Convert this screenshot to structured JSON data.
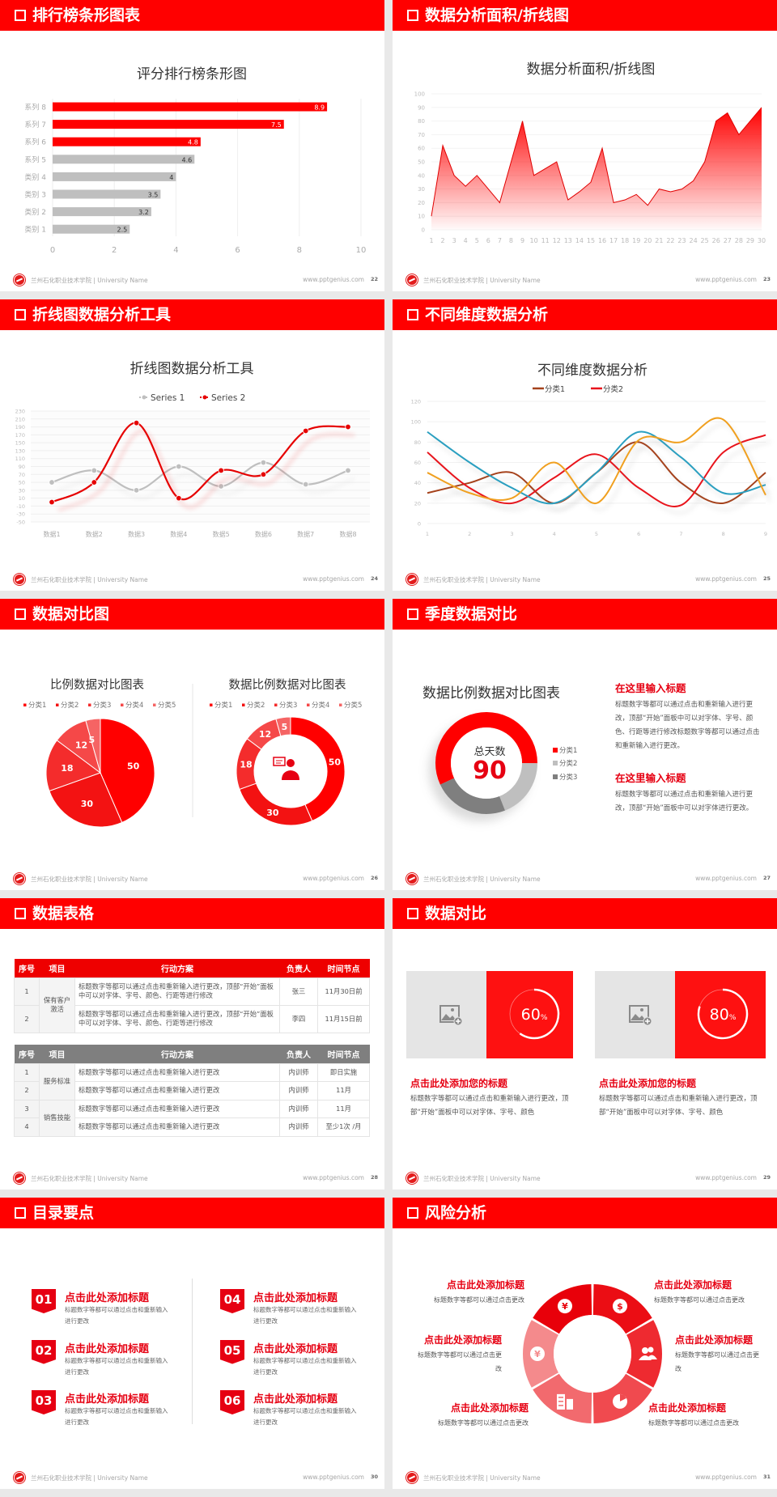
{
  "footer": {
    "school": "兰州石化职业技术学院 | University Name",
    "url": "www.pptgenius.com"
  },
  "theme": {
    "accent": "#ff0000",
    "bar_gray": "#bfbfbf",
    "text_red": "#e60012"
  },
  "slides": [
    {
      "title": "排行榜条形图表",
      "page": "22",
      "chart_data": {
        "type": "bar",
        "orientation": "horizontal",
        "title": "评分排行榜条形图",
        "categories": [
          "系列 8",
          "系列 7",
          "系列 6",
          "系列 5",
          "类别 4",
          "类别 3",
          "类别 2",
          "类别 1"
        ],
        "values": [
          8.9,
          7.5,
          4.8,
          4.6,
          4,
          3.5,
          3.2,
          2.5
        ],
        "bar_colors": [
          "#ff0000",
          "#ff0000",
          "#ff0000",
          "#bfbfbf",
          "#bfbfbf",
          "#bfbfbf",
          "#bfbfbf",
          "#bfbfbf"
        ],
        "xlim": [
          0,
          10
        ],
        "xticks": [
          "0",
          "2",
          "4",
          "6",
          "8",
          "10"
        ],
        "grid": true
      }
    },
    {
      "title": "数据分析面积/折线图",
      "page": "23",
      "chart_data": {
        "type": "area",
        "title": "数据分析面积/折线图",
        "x": [
          1,
          2,
          3,
          4,
          5,
          6,
          7,
          8,
          9,
          10,
          11,
          12,
          13,
          14,
          15,
          16,
          17,
          18,
          19,
          20,
          21,
          22,
          23,
          24,
          25,
          26,
          27,
          28,
          29,
          30
        ],
        "values": [
          10,
          62,
          40,
          32,
          40,
          30,
          20,
          50,
          80,
          40,
          45,
          50,
          22,
          28,
          35,
          60,
          20,
          22,
          26,
          18,
          30,
          28,
          30,
          36,
          50,
          80,
          86,
          70,
          80,
          90
        ],
        "ylim": [
          0,
          100
        ],
        "yticks": [
          "0",
          "10",
          "20",
          "30",
          "40",
          "50",
          "60",
          "70",
          "80",
          "90",
          "100"
        ],
        "color": "#e00000",
        "grid": true
      }
    },
    {
      "title": "折线图数据分析工具",
      "page": "24",
      "chart_data": {
        "type": "line",
        "smooth": true,
        "title": "折线图数据分析工具",
        "categories": [
          "数据1",
          "数据2",
          "数据3",
          "数据4",
          "数据5",
          "数据6",
          "数据7",
          "数据8"
        ],
        "series": [
          {
            "name": "Series 1",
            "values": [
              50,
              80,
              30,
              90,
              40,
              100,
              45,
              80
            ],
            "color": "#bfbfbf"
          },
          {
            "name": "Series 2",
            "values": [
              0,
              50,
              200,
              10,
              80,
              70,
              180,
              190
            ],
            "color": "#e60000"
          }
        ],
        "ylim": [
          -50,
          230
        ],
        "yticks": [
          "230",
          "210",
          "190",
          "170",
          "150",
          "130",
          "110",
          "90",
          "70",
          "50",
          "30",
          "10",
          "-10",
          "-30",
          "-50"
        ],
        "legend": "top",
        "grid": true
      }
    },
    {
      "title": "不同维度数据分析",
      "page": "25",
      "chart_data": {
        "type": "line",
        "smooth": true,
        "title": "不同维度数据分析",
        "x": [
          "1",
          "2",
          "3",
          "4",
          "5",
          "6",
          "7",
          "8",
          "9"
        ],
        "series": [
          {
            "name": "分类1",
            "values": [
              30,
              40,
              50,
              20,
              50,
              80,
              40,
              20,
              50
            ],
            "color": "#a5421c"
          },
          {
            "name": "分类2",
            "values": [
              70,
              35,
              20,
              45,
              68,
              35,
              18,
              70,
              87
            ],
            "color": "#e8141c"
          },
          {
            "values": [
              90,
              60,
              35,
              20,
              50,
              90,
              65,
              30,
              38
            ],
            "color": "#2a9fc0"
          },
          {
            "values": [
              50,
              30,
              25,
              60,
              20,
              82,
              80,
              102,
              28
            ],
            "color": "#f0a020"
          }
        ],
        "ylim": [
          0,
          120
        ],
        "yticks": [
          "0",
          "20",
          "40",
          "60",
          "80",
          "100",
          "120"
        ],
        "legend": "top",
        "grid": true
      }
    },
    {
      "title": "数据对比图",
      "page": "26",
      "chart_data": [
        {
          "type": "pie",
          "title": "比例数据对比图表",
          "categories": [
            "分类1",
            "分类2",
            "分类3",
            "分类4",
            "分类5"
          ],
          "values": [
            50,
            30,
            18,
            12,
            5
          ],
          "colors": [
            "#ff0000",
            "#f31212",
            "#f42c2c",
            "#f54848",
            "#f56464"
          ],
          "legend": "top"
        },
        {
          "type": "donut",
          "title": "数据比例数据对比图表",
          "categories": [
            "分类1",
            "分类2",
            "分类3",
            "分类4",
            "分类5"
          ],
          "values": [
            50,
            30,
            18,
            12,
            5
          ],
          "colors": [
            "#ff0000",
            "#f31212",
            "#f42c2c",
            "#f54848",
            "#f56464"
          ],
          "center_icon": "presenter-icon",
          "legend": "top"
        }
      ]
    },
    {
      "title": "季度数据对比",
      "page": "27",
      "chart_data": {
        "type": "donut",
        "title": "数据比例数据对比图表",
        "center_label": "总天数",
        "center_value": "90",
        "categories": [
          "分类1",
          "分类2",
          "分类3"
        ],
        "shares_percent": [
          57,
          19,
          24
        ],
        "colors": [
          "#ff0000",
          "#bfbfbf",
          "#7f7f7f"
        ],
        "legend": "right"
      },
      "blocks": [
        {
          "heading": "在这里输入标题",
          "text": "标题数字等都可以通过点击和重新输入进行更改，顶部“开始”面板中可以对字体、字号、颜色、行距等进行修改标题数字等都可以通过点击和重新输入进行更改。"
        },
        {
          "heading": "在这里输入标题",
          "text": "标题数字等都可以通过点击和重新输入进行更改，顶部“开始”面板中可以对字体进行更改。"
        }
      ]
    },
    {
      "title": "数据表格",
      "page": "28",
      "tables": [
        {
          "headers": [
            "序号",
            "项目",
            "行动方案",
            "负责人",
            "时间节点"
          ],
          "rows": [
            {
              "no": "1",
              "item": "保有客户激活",
              "plan": "标题数字等都可以通过点击和重新输入进行更改，顶部“开始”面板中可以对字体、字号、颜色、行距等进行修改",
              "owner": "张三",
              "time": "11月30日前"
            },
            {
              "no": "2",
              "plan": "标题数字等都可以通过点击和重新输入进行更改，顶部“开始”面板中可以对字体、字号、颜色、行距等进行修改",
              "owner": "李四",
              "time": "11月15日前"
            }
          ]
        },
        {
          "headers": [
            "序号",
            "项目",
            "行动方案",
            "负责人",
            "时间节点"
          ],
          "rows": [
            {
              "no": "1",
              "item": "服务标准",
              "plan": "标题数字等都可以通过点击和重新输入进行更改",
              "owner": "内训师",
              "time": "即日实施"
            },
            {
              "no": "2",
              "plan": "标题数字等都可以通过点击和重新输入进行更改",
              "owner": "内训师",
              "time": "11月"
            },
            {
              "no": "3",
              "item": "销售技能",
              "plan": "标题数字等都可以通过点击和重新输入进行更改",
              "owner": "内训师",
              "time": "11月"
            },
            {
              "no": "4",
              "plan": "标题数字等都可以通过点击和重新输入进行更改",
              "owner": "内训师",
              "time": "至少1次 /月"
            }
          ]
        }
      ]
    },
    {
      "title": "数据对比",
      "page": "29",
      "cards": [
        {
          "progress_percent": 60,
          "value": "60",
          "unit": "%",
          "heading": "点击此处添加您的标题",
          "text": "标题数字等都可以通过点击和重新输入进行更改，顶部“开始”面板中可以对字体、字号、颜色",
          "image_icon": "add-image-icon"
        },
        {
          "progress_percent": 80,
          "value": "80",
          "unit": "%",
          "heading": "点击此处添加您的标题",
          "text": "标题数字等都可以通过点击和重新输入进行更改，顶部“开始”面板中可以对字体、字号、颜色",
          "image_icon": "add-image-icon"
        }
      ]
    },
    {
      "title": "目录要点",
      "page": "30",
      "items": [
        {
          "num": "01",
          "heading": "点击此处添加标题",
          "text": "标题数字等都可以通过点击和重新输入进行更改"
        },
        {
          "num": "02",
          "heading": "点击此处添加标题",
          "text": "标题数字等都可以通过点击和重新输入进行更改"
        },
        {
          "num": "03",
          "heading": "点击此处添加标题",
          "text": "标题数字等都可以通过点击和重新输入进行更改"
        },
        {
          "num": "04",
          "heading": "点击此处添加标题",
          "text": "标题数字等都可以通过点击和重新输入进行更改"
        },
        {
          "num": "05",
          "heading": "点击此处添加标题",
          "text": "标题数字等都可以通过点击和重新输入进行更改"
        },
        {
          "num": "06",
          "heading": "点击此处添加标题",
          "text": "标题数字等都可以通过点击和重新输入进行更改"
        }
      ]
    },
    {
      "title": "风险分析",
      "page": "31",
      "items": [
        {
          "heading": "点击此处添加标题",
          "text": "标题数字等都可以通过点击更改",
          "icon": "money-bag-icon"
        },
        {
          "heading": "点击此处添加标题",
          "text": "标题数字等都可以通过点击更改",
          "icon": "coins-icon"
        },
        {
          "heading": "点击此处添加标题",
          "text": "标题数字等都可以通过点击更改",
          "icon": "users-icon"
        },
        {
          "heading": "点击此处添加标题",
          "text": "标题数字等都可以通过点击更改",
          "icon": "pie-chart-icon"
        },
        {
          "heading": "点击此处添加标题",
          "text": "标题数字等都可以通过点击更改",
          "icon": "building-icon"
        },
        {
          "heading": "点击此处添加标题",
          "text": "标题数字等都可以通过点击更改",
          "icon": "hand-yen-icon"
        }
      ],
      "segment_colors": [
        "#e8000a",
        "#eb0d14",
        "#ee2a30",
        "#f04a4f",
        "#f26a6e",
        "#f48a8c"
      ]
    }
  ]
}
